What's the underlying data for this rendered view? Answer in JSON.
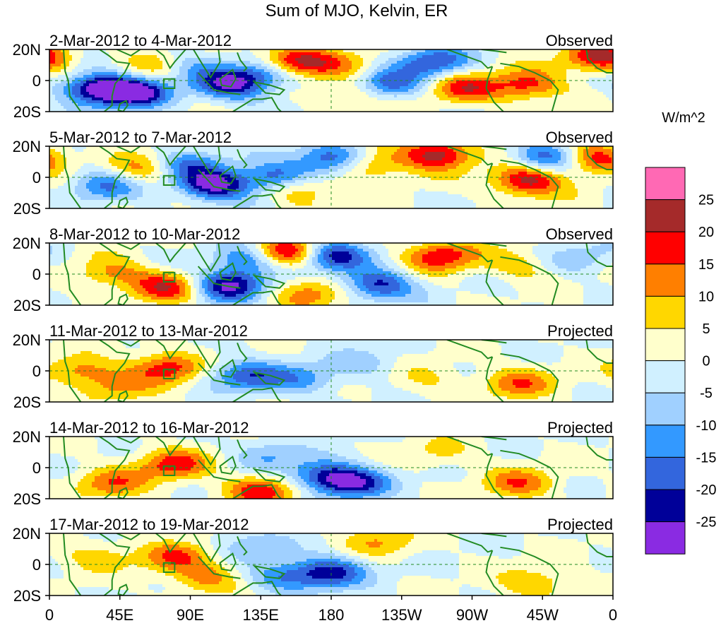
{
  "chart_data": {
    "type": "heatmap",
    "title": "Sum of MJO, Kelvin, ER",
    "colorbar": {
      "unit_label": "W/m^2",
      "tick_labels": [
        "25",
        "20",
        "15",
        "10",
        "5",
        "0",
        "-5",
        "-10",
        "-15",
        "-20",
        "-25"
      ],
      "colors_top_to_bottom": [
        "#ff69b4",
        "#a52a2a",
        "#ff0000",
        "#ff7f00",
        "#ffd700",
        "#ffffcc",
        "#d0f0ff",
        "#a0d0ff",
        "#3399ff",
        "#3366dd",
        "#000099",
        "#8a2be2"
      ]
    },
    "x_axis": {
      "tick_labels": [
        "0",
        "45E",
        "90E",
        "135E",
        "180",
        "135W",
        "90W",
        "45W",
        "0"
      ],
      "lon_range": [
        0,
        360
      ]
    },
    "y_axis": {
      "tick_labels": [
        "20N",
        "0",
        "20S"
      ],
      "lat_range": [
        -20,
        20
      ]
    },
    "panels": [
      {
        "period": "2-Mar-2012 to 4-Mar-2012",
        "kind": "Observed",
        "amplitude": 1.0,
        "blobs": [
          {
            "lon": 30,
            "lat": -5,
            "value": -27
          },
          {
            "lon": 55,
            "lat": -8,
            "value": -26
          },
          {
            "lon": 115,
            "lat": -3,
            "value": -24
          },
          {
            "lon": 140,
            "lat": 5,
            "value": -18
          },
          {
            "lon": 90,
            "lat": 10,
            "value": -10
          },
          {
            "lon": 155,
            "lat": 12,
            "value": 26
          },
          {
            "lon": 185,
            "lat": 10,
            "value": 8
          },
          {
            "lon": 215,
            "lat": -3,
            "value": -20
          },
          {
            "lon": 245,
            "lat": 12,
            "value": -20
          },
          {
            "lon": 265,
            "lat": -5,
            "value": 17
          },
          {
            "lon": 305,
            "lat": -3,
            "value": 18
          },
          {
            "lon": 352,
            "lat": 15,
            "value": 22
          },
          {
            "lon": 70,
            "lat": 10,
            "value": 9
          },
          {
            "lon": 195,
            "lat": -8,
            "value": 12
          }
        ]
      },
      {
        "period": "5-Mar-2012 to 7-Mar-2012",
        "kind": "Observed",
        "amplitude": 1.0,
        "blobs": [
          {
            "lon": 105,
            "lat": -5,
            "value": -28
          },
          {
            "lon": 145,
            "lat": 0,
            "value": -20
          },
          {
            "lon": 35,
            "lat": -5,
            "value": -15
          },
          {
            "lon": 60,
            "lat": 5,
            "value": 12
          },
          {
            "lon": 160,
            "lat": -7,
            "value": 14
          },
          {
            "lon": 180,
            "lat": 12,
            "value": -22
          },
          {
            "lon": 205,
            "lat": 8,
            "value": 14
          },
          {
            "lon": 248,
            "lat": 15,
            "value": 24
          },
          {
            "lon": 305,
            "lat": -2,
            "value": 24
          },
          {
            "lon": 318,
            "lat": 13,
            "value": -20
          },
          {
            "lon": 348,
            "lat": 12,
            "value": 20
          },
          {
            "lon": 88,
            "lat": 8,
            "value": -14
          }
        ]
      },
      {
        "period": "8-Mar-2012 to 10-Mar-2012",
        "kind": "Observed",
        "amplitude": 1.0,
        "blobs": [
          {
            "lon": 115,
            "lat": -7,
            "value": -28
          },
          {
            "lon": 150,
            "lat": 14,
            "value": 26
          },
          {
            "lon": 180,
            "lat": 12,
            "value": -24
          },
          {
            "lon": 210,
            "lat": -7,
            "value": -22
          },
          {
            "lon": 250,
            "lat": 12,
            "value": 20
          },
          {
            "lon": 40,
            "lat": 0,
            "value": 12
          },
          {
            "lon": 75,
            "lat": -8,
            "value": 18
          },
          {
            "lon": 130,
            "lat": 10,
            "value": -18
          },
          {
            "lon": 165,
            "lat": -12,
            "value": 14
          },
          {
            "lon": 300,
            "lat": 5,
            "value": 8
          },
          {
            "lon": 340,
            "lat": 10,
            "value": -8
          }
        ]
      },
      {
        "period": "11-Mar-2012 to 13-Mar-2012",
        "kind": "Projected",
        "amplitude": 0.7,
        "blobs": [
          {
            "lon": 20,
            "lat": 0,
            "value": 12
          },
          {
            "lon": 75,
            "lat": 2,
            "value": 18
          },
          {
            "lon": 125,
            "lat": -3,
            "value": -18
          },
          {
            "lon": 160,
            "lat": -5,
            "value": -12
          },
          {
            "lon": 200,
            "lat": 5,
            "value": -8
          },
          {
            "lon": 240,
            "lat": -5,
            "value": 6
          },
          {
            "lon": 300,
            "lat": -8,
            "value": 14
          },
          {
            "lon": 45,
            "lat": -10,
            "value": 10
          }
        ]
      },
      {
        "period": "14-Mar-2012 to 16-Mar-2012",
        "kind": "Projected",
        "amplitude": 0.7,
        "blobs": [
          {
            "lon": 80,
            "lat": 2,
            "value": 18
          },
          {
            "lon": 175,
            "lat": -5,
            "value": -18
          },
          {
            "lon": 195,
            "lat": -10,
            "value": -22
          },
          {
            "lon": 135,
            "lat": -15,
            "value": 18
          },
          {
            "lon": 40,
            "lat": -10,
            "value": 14
          },
          {
            "lon": 300,
            "lat": -10,
            "value": 14
          },
          {
            "lon": 140,
            "lat": 8,
            "value": -10
          },
          {
            "lon": 250,
            "lat": 10,
            "value": 6
          }
        ]
      },
      {
        "period": "17-Mar-2012 to 19-Mar-2012",
        "kind": "Projected",
        "amplitude": 0.7,
        "blobs": [
          {
            "lon": 80,
            "lat": 5,
            "value": 14
          },
          {
            "lon": 100,
            "lat": -8,
            "value": 12
          },
          {
            "lon": 180,
            "lat": -5,
            "value": -22
          },
          {
            "lon": 150,
            "lat": -8,
            "value": -14
          },
          {
            "lon": 130,
            "lat": 12,
            "value": -10
          },
          {
            "lon": 210,
            "lat": 15,
            "value": 10
          },
          {
            "lon": 310,
            "lat": -12,
            "value": 10
          },
          {
            "lon": 30,
            "lat": 5,
            "value": 8
          }
        ]
      }
    ]
  }
}
